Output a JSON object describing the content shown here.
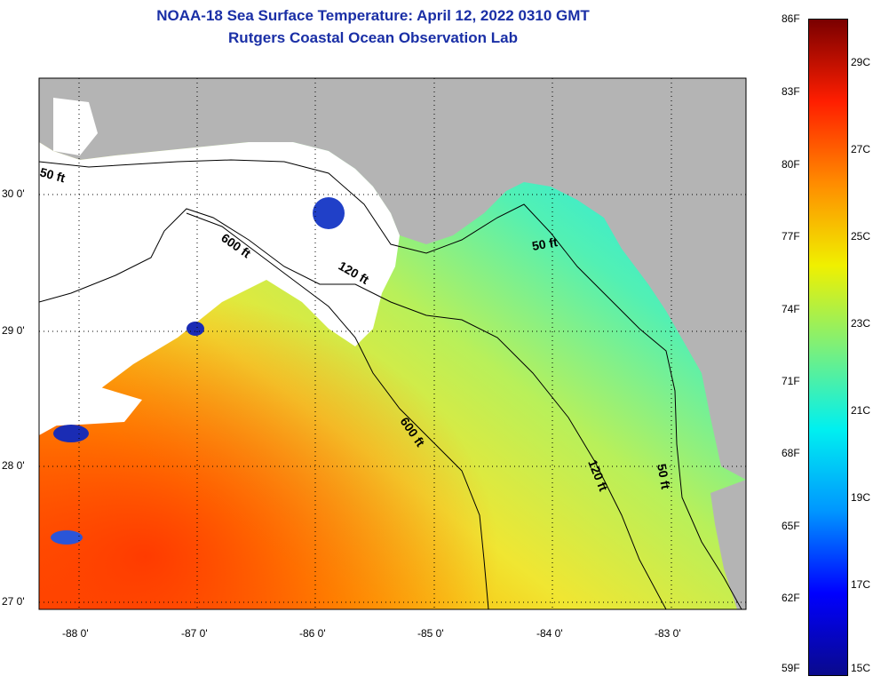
{
  "title": {
    "line1": "NOAA-18 Sea Surface Temperature:  April 12, 2022 0310 GMT",
    "line2": "Rutgers Coastal Ocean Observation Lab"
  },
  "map": {
    "lon_labels": [
      "-88 0'",
      "-87 0'",
      "-86 0'",
      "-85 0'",
      "-84 0'",
      "-83 0'"
    ],
    "lat_labels": [
      "30 0'",
      "29 0'",
      "28 0'",
      "27 0'"
    ],
    "contour_labels": {
      "c50_west": "50 ft",
      "c600_north": "600 ft",
      "c120_north": "120 ft",
      "c50_north": "50 ft",
      "c600_south": "600 ft",
      "c120_south": "120 ft",
      "c50_south": "50 ft"
    },
    "colors": {
      "land": "#b4b4b4",
      "cloud": "#ffffff",
      "contour": "#000000"
    }
  },
  "colorbar": {
    "fahrenheit": [
      "86F",
      "83F",
      "80F",
      "77F",
      "74F",
      "71F",
      "68F",
      "65F",
      "62F",
      "59F"
    ],
    "celsius": [
      "29C",
      "27C",
      "25C",
      "23C",
      "21C",
      "19C",
      "17C",
      "15C"
    ],
    "gradient": [
      "#0a0a8c",
      "#0000ff",
      "#0096ff",
      "#00f0f0",
      "#7cf07a",
      "#f0f000",
      "#ff8c00",
      "#ff1e00",
      "#7a0000"
    ]
  }
}
